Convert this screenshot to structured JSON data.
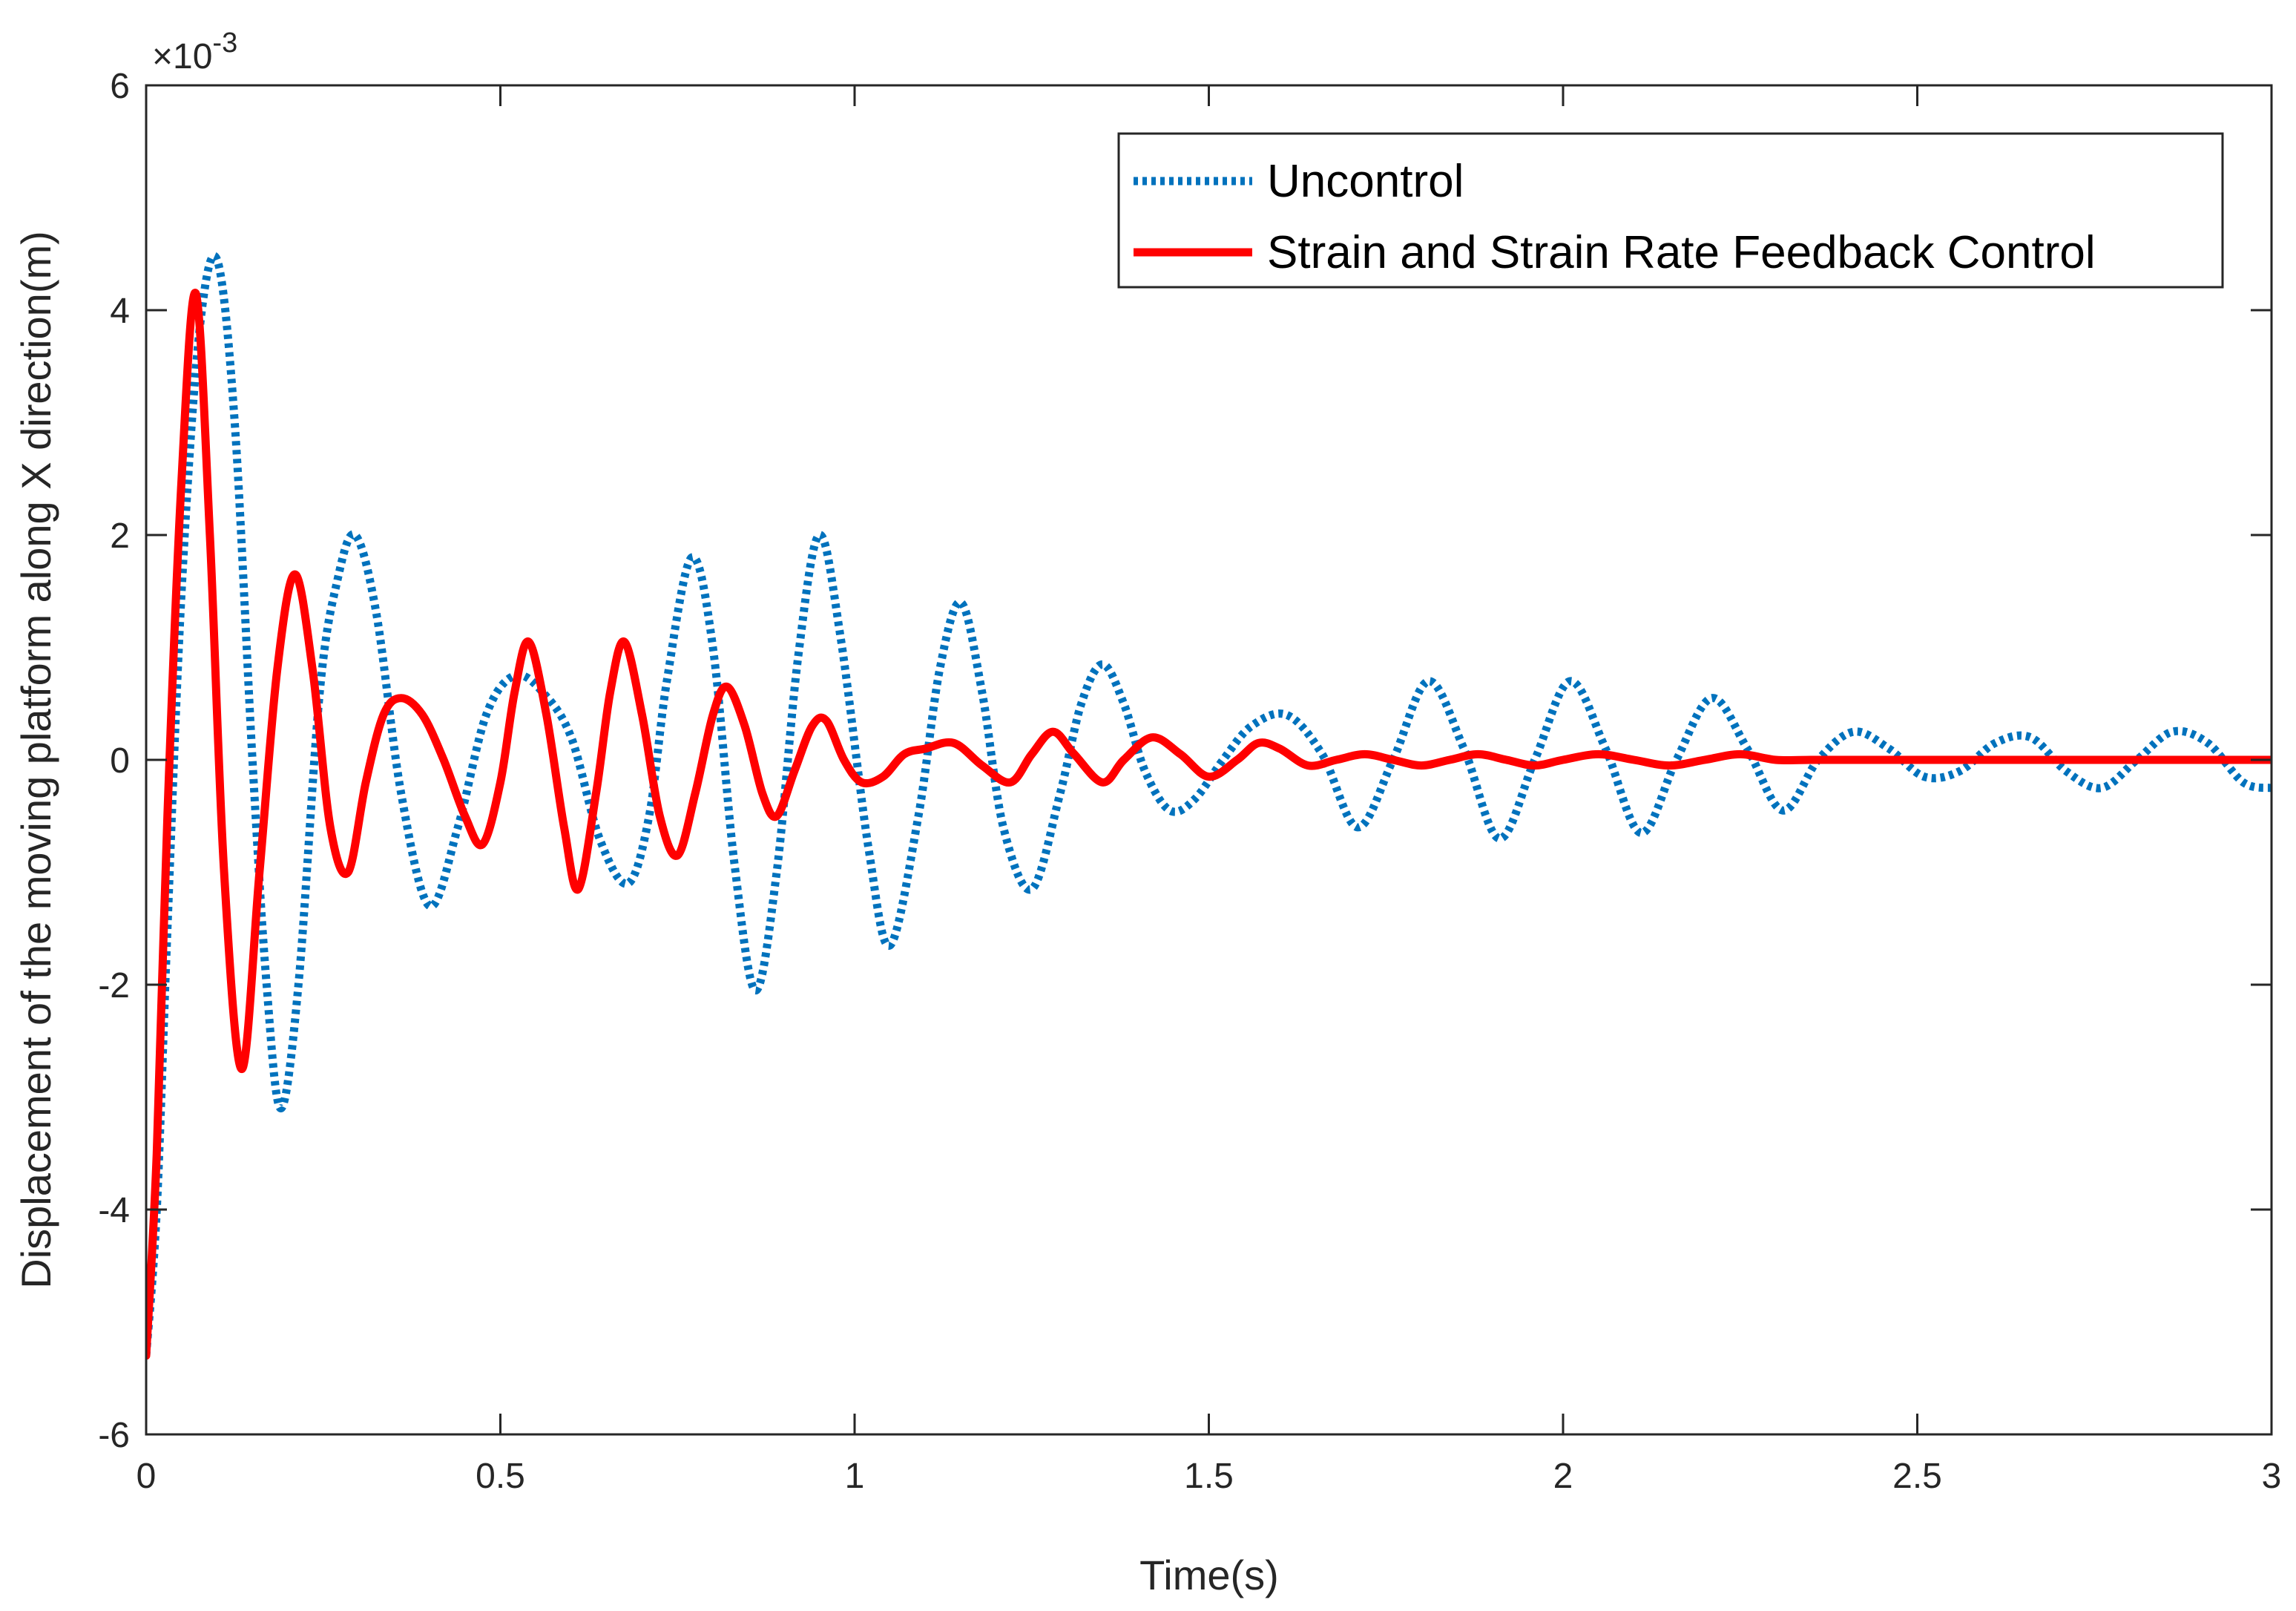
{
  "chart_data": {
    "type": "line",
    "title": "",
    "xlabel": "Time(s)",
    "ylabel": "Displacement of the moving platform along X direction(m)",
    "exponent_label": "×10",
    "exponent_power": "-3",
    "xlim": [
      0,
      3
    ],
    "ylim": [
      -6,
      6
    ],
    "xticks": [
      0,
      0.5,
      1,
      1.5,
      2,
      2.5,
      3
    ],
    "xtick_labels": [
      "0",
      "0.5",
      "1",
      "1.5",
      "2",
      "2.5",
      "3"
    ],
    "yticks": [
      -6,
      -4,
      -2,
      0,
      2,
      4,
      6
    ],
    "ytick_labels": [
      "-6",
      "-4",
      "-2",
      "0",
      "2",
      "4",
      "6"
    ],
    "grid": false,
    "legend_position": "top-right",
    "series": [
      {
        "name": "Uncontrol",
        "color": "#0072BD",
        "style": "dotted",
        "x": [
          0,
          0.015,
          0.03,
          0.05,
          0.075,
          0.1,
          0.125,
          0.15,
          0.17,
          0.19,
          0.215,
          0.245,
          0.27,
          0.295,
          0.325,
          0.36,
          0.4,
          0.44,
          0.48,
          0.52,
          0.56,
          0.6,
          0.64,
          0.68,
          0.71,
          0.735,
          0.77,
          0.8,
          0.83,
          0.86,
          0.89,
          0.92,
          0.95,
          0.98,
          1.02,
          1.05,
          1.09,
          1.12,
          1.15,
          1.18,
          1.21,
          1.25,
          1.29,
          1.32,
          1.35,
          1.38,
          1.41,
          1.445,
          1.48,
          1.52,
          1.56,
          1.61,
          1.66,
          1.71,
          1.76,
          1.81,
          1.86,
          1.91,
          1.96,
          2.01,
          2.06,
          2.11,
          2.16,
          2.21,
          2.26,
          2.31,
          2.36,
          2.41,
          2.46,
          2.51,
          2.56,
          2.61,
          2.66,
          2.71,
          2.76,
          2.81,
          2.86,
          2.91,
          2.96,
          3.0
        ],
        "values": [
          -5.3,
          -4.0,
          -1.5,
          1.5,
          3.8,
          4.45,
          3.0,
          0.0,
          -2.0,
          -3.1,
          -2.0,
          0.6,
          1.6,
          2.0,
          1.3,
          -0.3,
          -1.3,
          -0.6,
          0.4,
          0.75,
          0.6,
          0.2,
          -0.7,
          -1.1,
          -0.5,
          0.7,
          1.8,
          1.0,
          -0.9,
          -2.05,
          -1.0,
          0.9,
          2.0,
          1.1,
          -0.8,
          -1.65,
          -0.5,
          0.8,
          1.4,
          0.6,
          -0.6,
          -1.15,
          -0.3,
          0.5,
          0.85,
          0.5,
          -0.1,
          -0.45,
          -0.35,
          0.0,
          0.3,
          0.4,
          0.05,
          -0.6,
          0.0,
          0.7,
          0.1,
          -0.7,
          0.0,
          0.7,
          0.1,
          -0.65,
          0.0,
          0.55,
          0.1,
          -0.45,
          0.0,
          0.25,
          0.1,
          -0.15,
          -0.1,
          0.15,
          0.2,
          -0.1,
          -0.25,
          0.0,
          0.25,
          0.15,
          -0.2,
          -0.25
        ]
      },
      {
        "name": "Strain and Strain Rate Feedback Control",
        "color": "#FF0000",
        "style": "solid",
        "x": [
          0,
          0.015,
          0.03,
          0.05,
          0.07,
          0.09,
          0.11,
          0.135,
          0.16,
          0.185,
          0.21,
          0.235,
          0.26,
          0.285,
          0.31,
          0.335,
          0.36,
          0.39,
          0.42,
          0.45,
          0.475,
          0.5,
          0.52,
          0.54,
          0.565,
          0.59,
          0.61,
          0.635,
          0.655,
          0.675,
          0.7,
          0.725,
          0.75,
          0.775,
          0.8,
          0.82,
          0.845,
          0.87,
          0.89,
          0.915,
          0.94,
          0.96,
          0.985,
          1.01,
          1.04,
          1.07,
          1.1,
          1.14,
          1.18,
          1.22,
          1.25,
          1.28,
          1.31,
          1.35,
          1.38,
          1.42,
          1.46,
          1.5,
          1.54,
          1.57,
          1.6,
          1.64,
          1.68,
          1.72,
          1.76,
          1.8,
          1.84,
          1.88,
          1.92,
          1.96,
          2.0,
          2.05,
          2.1,
          2.15,
          2.2,
          2.25,
          2.3,
          2.35,
          2.4,
          2.5,
          2.6,
          2.7,
          2.8,
          2.9,
          3.0
        ],
        "values": [
          -5.3,
          -3.5,
          -0.5,
          2.5,
          4.15,
          2.0,
          -1.0,
          -2.75,
          -1.0,
          0.8,
          1.65,
          0.8,
          -0.6,
          -1.0,
          -0.2,
          0.4,
          0.55,
          0.4,
          0.0,
          -0.5,
          -0.75,
          -0.2,
          0.6,
          1.05,
          0.4,
          -0.6,
          -1.15,
          -0.3,
          0.6,
          1.05,
          0.4,
          -0.5,
          -0.85,
          -0.3,
          0.4,
          0.65,
          0.3,
          -0.3,
          -0.5,
          -0.1,
          0.3,
          0.35,
          0.0,
          -0.2,
          -0.15,
          0.05,
          0.1,
          0.15,
          -0.05,
          -0.2,
          0.05,
          0.25,
          0.05,
          -0.2,
          0.0,
          0.2,
          0.05,
          -0.15,
          0.0,
          0.15,
          0.1,
          -0.05,
          0.0,
          0.05,
          0.0,
          -0.05,
          0.0,
          0.05,
          0.0,
          -0.05,
          0.0,
          0.05,
          0.0,
          -0.05,
          0.0,
          0.05,
          0.0,
          0.0,
          0.0,
          0.0,
          0.0,
          0.0,
          0.0,
          0.0,
          0.0
        ]
      }
    ]
  }
}
